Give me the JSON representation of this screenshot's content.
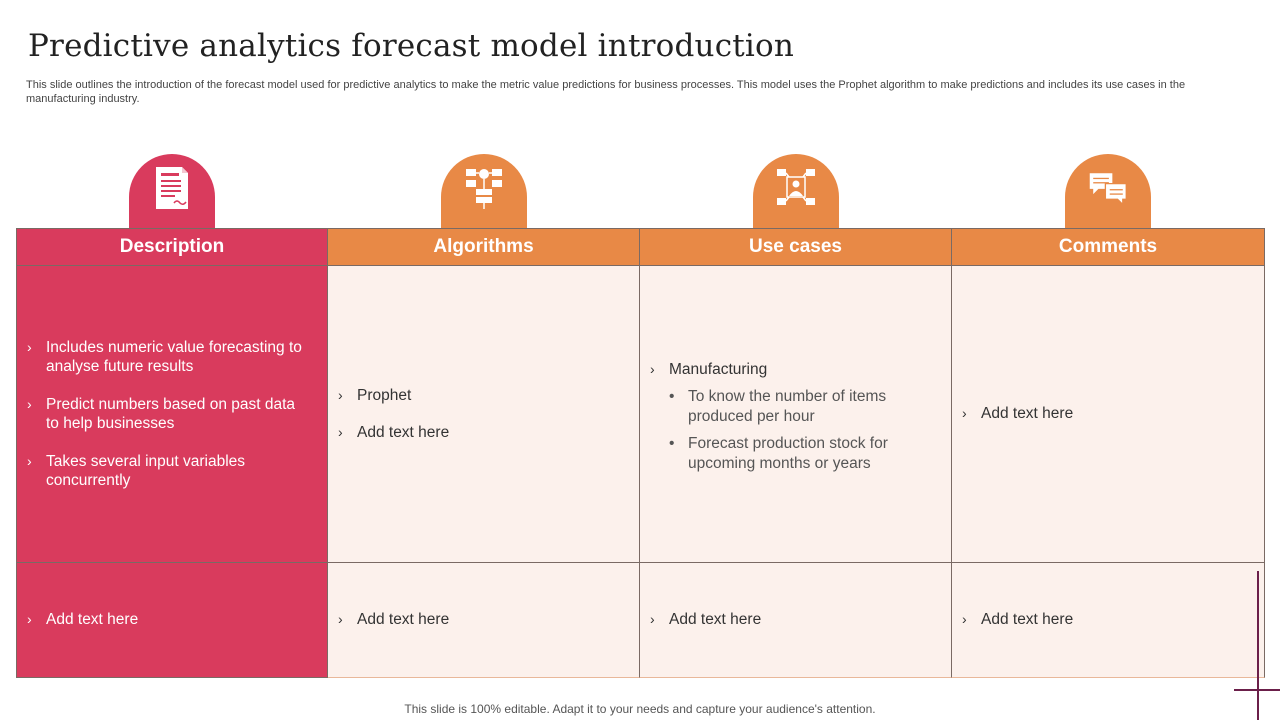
{
  "title": "Predictive analytics forecast model introduction",
  "subtitle": "This slide outlines the introduction of the forecast model used for predictive analytics to make the metric value predictions for business processes. This model uses the Prophet algorithm to make predictions and includes its use cases in the manufacturing industry.",
  "colors": {
    "pink": "#d93b5d",
    "orange": "#e88946",
    "cream": "#fcf1ec"
  },
  "columns": [
    {
      "header": "Description",
      "icon": "document-icon"
    },
    {
      "header": "Algorithms",
      "icon": "flowchart-icon"
    },
    {
      "header": "Use cases",
      "icon": "network-user-icon"
    },
    {
      "header": "Comments",
      "icon": "chat-bubbles-icon"
    }
  ],
  "description": {
    "items": [
      "Includes numeric value forecasting to analyse future results",
      "Predict numbers based on past data to help businesses",
      "Takes several input variables concurrently"
    ],
    "extra": "Add text here"
  },
  "algorithms": {
    "items": [
      "Prophet",
      "Add text here"
    ],
    "extra": "Add text here"
  },
  "use_cases": {
    "heading": "Manufacturing",
    "subitems": [
      "To know the number of items produced per hour",
      "Forecast production stock for upcoming months or years"
    ],
    "extra": "Add text here"
  },
  "comments": {
    "items": [
      "Add text here"
    ],
    "extra": "Add text here"
  },
  "bullet_mark": "›",
  "sub_mark": "•",
  "footer": "This slide is 100% editable. Adapt it to your needs and capture your audience's attention."
}
